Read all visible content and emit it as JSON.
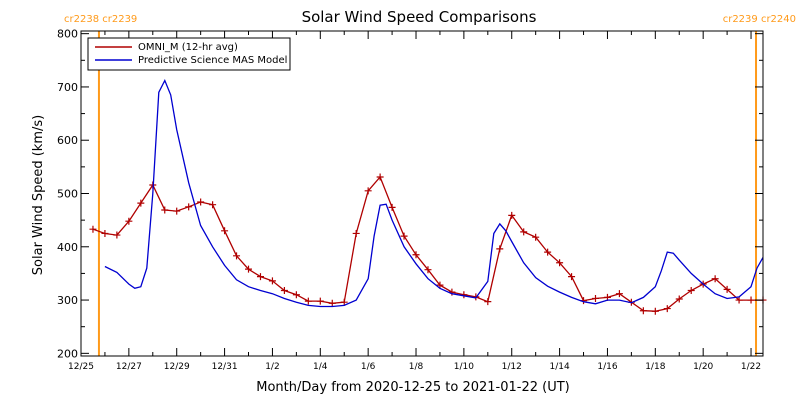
{
  "chart_data": {
    "type": "line",
    "title": "Solar Wind Speed Comparisons",
    "xlabel": "Month/Day from 2020-12-25 to 2021-01-22 (UT)",
    "ylabel": "Solar Wind Speed (km/s)",
    "xlim": [
      "2020-12-25T00:00",
      "2021-01-22T12:00"
    ],
    "ylim": [
      195,
      805
    ],
    "y_ticks": [
      200,
      300,
      400,
      500,
      600,
      700,
      800
    ],
    "x_ticks": [
      {
        "date": "2020-12-25",
        "label": "12/25"
      },
      {
        "date": "2020-12-27",
        "label": "12/27"
      },
      {
        "date": "2020-12-29",
        "label": "12/29"
      },
      {
        "date": "2020-12-31",
        "label": "12/31"
      },
      {
        "date": "2021-01-02",
        "label": "1/2"
      },
      {
        "date": "2021-01-04",
        "label": "1/4"
      },
      {
        "date": "2021-01-06",
        "label": "1/6"
      },
      {
        "date": "2021-01-08",
        "label": "1/8"
      },
      {
        "date": "2021-01-10",
        "label": "1/10"
      },
      {
        "date": "2021-01-12",
        "label": "1/12"
      },
      {
        "date": "2021-01-14",
        "label": "1/14"
      },
      {
        "date": "2021-01-16",
        "label": "1/16"
      },
      {
        "date": "2021-01-18",
        "label": "1/18"
      },
      {
        "date": "2021-01-20",
        "label": "1/20"
      },
      {
        "date": "2021-01-22",
        "label": "1/22"
      }
    ],
    "legend": {
      "placement": "top-left"
    },
    "carrington_markers": [
      {
        "date": "2020-12-25T18:00",
        "label": "cr2238 cr2239",
        "side": "left"
      },
      {
        "date": "2021-01-22T05:00",
        "label": "cr2239 cr2240",
        "side": "right"
      }
    ],
    "series": [
      {
        "name": "OMNI_M (12-hr avg)",
        "color": "#b00000",
        "markers": true,
        "x": [
          "2020-12-25T12:00",
          "2020-12-26T00:00",
          "2020-12-26T12:00",
          "2020-12-27T00:00",
          "2020-12-27T12:00",
          "2020-12-28T00:00",
          "2020-12-28T12:00",
          "2020-12-29T00:00",
          "2020-12-29T12:00",
          "2020-12-30T00:00",
          "2020-12-30T12:00",
          "2020-12-31T00:00",
          "2020-12-31T12:00",
          "2021-01-01T00:00",
          "2021-01-01T12:00",
          "2021-01-02T00:00",
          "2021-01-02T12:00",
          "2021-01-03T00:00",
          "2021-01-03T12:00",
          "2021-01-04T00:00",
          "2021-01-04T12:00",
          "2021-01-05T00:00",
          "2021-01-05T12:00",
          "2021-01-06T00:00",
          "2021-01-06T12:00",
          "2021-01-07T00:00",
          "2021-01-07T12:00",
          "2021-01-08T00:00",
          "2021-01-08T12:00",
          "2021-01-09T00:00",
          "2021-01-09T12:00",
          "2021-01-10T00:00",
          "2021-01-10T12:00",
          "2021-01-11T00:00",
          "2021-01-11T12:00",
          "2021-01-12T00:00",
          "2021-01-12T12:00",
          "2021-01-13T00:00",
          "2021-01-13T12:00",
          "2021-01-14T00:00",
          "2021-01-14T12:00",
          "2021-01-15T00:00",
          "2021-01-15T12:00",
          "2021-01-16T00:00",
          "2021-01-16T12:00",
          "2021-01-17T00:00",
          "2021-01-17T12:00",
          "2021-01-18T00:00",
          "2021-01-18T12:00",
          "2021-01-19T00:00",
          "2021-01-19T12:00",
          "2021-01-20T00:00",
          "2021-01-20T12:00",
          "2021-01-21T00:00",
          "2021-01-21T12:00",
          "2021-01-22T00:00",
          "2021-01-22T12:00"
        ],
        "y": [
          433,
          425,
          422,
          448,
          482,
          516,
          469,
          467,
          475,
          484,
          479,
          430,
          383,
          358,
          344,
          336,
          318,
          310,
          298,
          298,
          294,
          296,
          425,
          505,
          531,
          474,
          420,
          385,
          357,
          328,
          315,
          310,
          306,
          297,
          396,
          459,
          428,
          418,
          390,
          370,
          344,
          299,
          303,
          305,
          312,
          296,
          280,
          279,
          284,
          302,
          318,
          330,
          340,
          320,
          300,
          300,
          300
        ]
      },
      {
        "name": "Predictive Science MAS Model",
        "color": "#0000d0",
        "markers": false,
        "x": [
          "2020-12-26T00:00",
          "2020-12-26T12:00",
          "2020-12-27T00:00",
          "2020-12-27T06:00",
          "2020-12-27T12:00",
          "2020-12-27T18:00",
          "2020-12-28T00:00",
          "2020-12-28T06:00",
          "2020-12-28T12:00",
          "2020-12-28T18:00",
          "2020-12-29T00:00",
          "2020-12-29T12:00",
          "2020-12-30T00:00",
          "2020-12-30T12:00",
          "2020-12-31T00:00",
          "2020-12-31T12:00",
          "2021-01-01T00:00",
          "2021-01-01T12:00",
          "2021-01-02T00:00",
          "2021-01-02T12:00",
          "2021-01-03T00:00",
          "2021-01-03T12:00",
          "2021-01-04T00:00",
          "2021-01-04T12:00",
          "2021-01-05T00:00",
          "2021-01-05T12:00",
          "2021-01-06T00:00",
          "2021-01-06T06:00",
          "2021-01-06T12:00",
          "2021-01-06T18:00",
          "2021-01-07T00:00",
          "2021-01-07T12:00",
          "2021-01-08T00:00",
          "2021-01-08T12:00",
          "2021-01-09T00:00",
          "2021-01-09T12:00",
          "2021-01-10T00:00",
          "2021-01-10T12:00",
          "2021-01-11T00:00",
          "2021-01-11T06:00",
          "2021-01-11T12:00",
          "2021-01-11T18:00",
          "2021-01-12T00:00",
          "2021-01-12T12:00",
          "2021-01-13T00:00",
          "2021-01-13T12:00",
          "2021-01-14T00:00",
          "2021-01-14T12:00",
          "2021-01-15T00:00",
          "2021-01-15T12:00",
          "2021-01-16T00:00",
          "2021-01-16T12:00",
          "2021-01-17T00:00",
          "2021-01-17T12:00",
          "2021-01-18T00:00",
          "2021-01-18T06:00",
          "2021-01-18T12:00",
          "2021-01-18T18:00",
          "2021-01-19T00:00",
          "2021-01-19T12:00",
          "2021-01-20T00:00",
          "2021-01-20T12:00",
          "2021-01-21T00:00",
          "2021-01-21T12:00",
          "2021-01-22T00:00",
          "2021-01-22T06:00",
          "2021-01-22T12:00"
        ],
        "y": [
          363,
          352,
          330,
          322,
          325,
          360,
          500,
          690,
          712,
          685,
          620,
          520,
          440,
          400,
          365,
          338,
          325,
          318,
          312,
          303,
          296,
          290,
          288,
          288,
          290,
          300,
          340,
          420,
          478,
          480,
          450,
          400,
          368,
          340,
          322,
          312,
          308,
          304,
          335,
          425,
          443,
          430,
          410,
          370,
          342,
          326,
          315,
          305,
          297,
          293,
          300,
          300,
          295,
          305,
          325,
          355,
          390,
          388,
          375,
          350,
          330,
          312,
          303,
          306,
          325,
          360,
          380
        ]
      }
    ]
  }
}
